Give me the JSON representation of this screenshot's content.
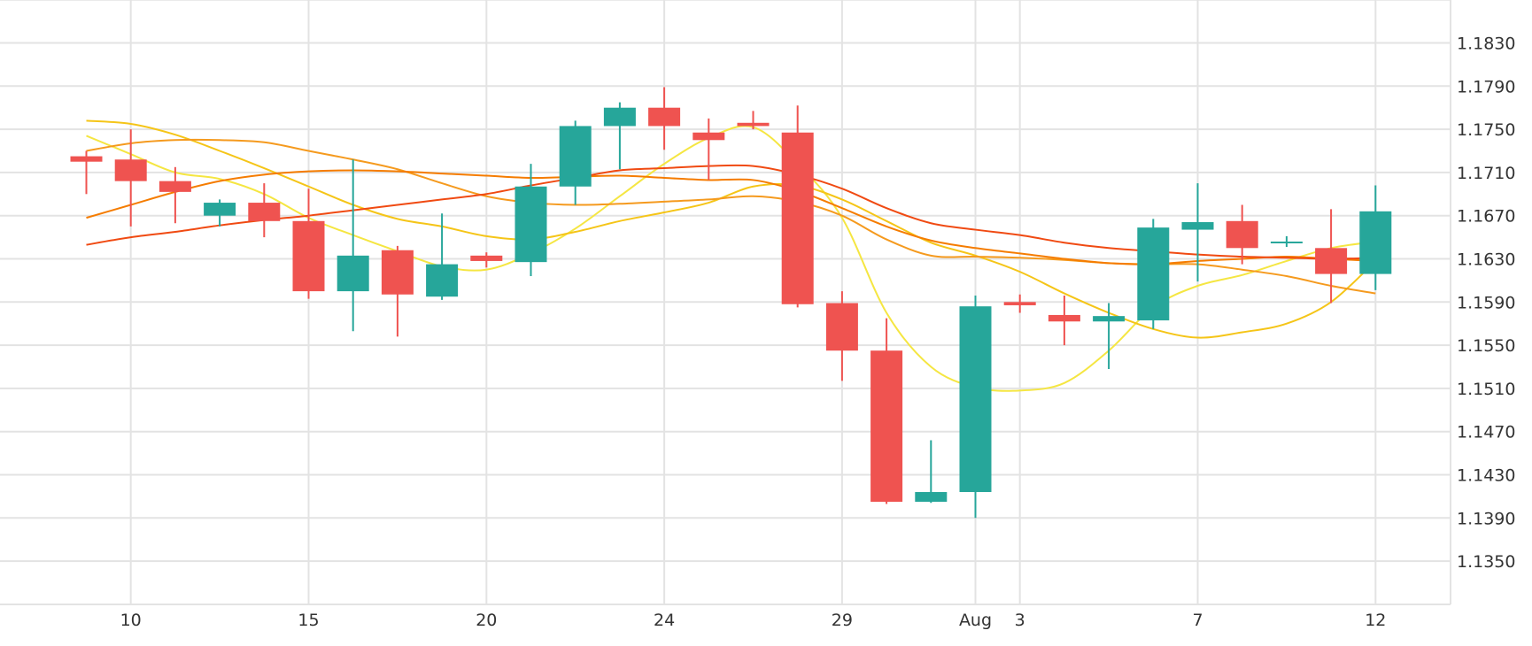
{
  "chart_data": {
    "type": "candlestick",
    "title": "",
    "xlabel": "",
    "ylabel": "",
    "ylim": [
      1.131,
      1.187
    ],
    "y_ticks": [
      "1.1350",
      "1.1390",
      "1.1430",
      "1.1470",
      "1.1510",
      "1.1550",
      "1.1590",
      "1.1630",
      "1.1670",
      "1.1710",
      "1.1750",
      "1.1790",
      "1.1830"
    ],
    "x_ticks": [
      {
        "label": "10",
        "index": 1
      },
      {
        "label": "15",
        "index": 5
      },
      {
        "label": "20",
        "index": 9
      },
      {
        "label": "24",
        "index": 13
      },
      {
        "label": "29",
        "index": 17
      },
      {
        "label": "Aug",
        "index": 20
      },
      {
        "label": "3",
        "index": 21
      },
      {
        "label": "7",
        "index": 25
      },
      {
        "label": "12",
        "index": 29
      }
    ],
    "grid": true,
    "colors": {
      "up": "#26a69a",
      "down": "#ef5350",
      "grid": "#e3e3e3"
    },
    "candles": [
      {
        "o": 1.1725,
        "h": 1.173,
        "l": 1.169,
        "c": 1.172
      },
      {
        "o": 1.1722,
        "h": 1.175,
        "l": 1.166,
        "c": 1.1702
      },
      {
        "o": 1.1702,
        "h": 1.1715,
        "l": 1.1663,
        "c": 1.1692
      },
      {
        "o": 1.167,
        "h": 1.1685,
        "l": 1.166,
        "c": 1.1682
      },
      {
        "o": 1.1682,
        "h": 1.17,
        "l": 1.165,
        "c": 1.1665
      },
      {
        "o": 1.1665,
        "h": 1.1695,
        "l": 1.1593,
        "c": 1.16
      },
      {
        "o": 1.16,
        "h": 1.1722,
        "l": 1.1563,
        "c": 1.1633
      },
      {
        "o": 1.1638,
        "h": 1.1642,
        "l": 1.1558,
        "c": 1.1597
      },
      {
        "o": 1.1595,
        "h": 1.1672,
        "l": 1.1592,
        "c": 1.1625
      },
      {
        "o": 1.1633,
        "h": 1.1636,
        "l": 1.1622,
        "c": 1.1628
      },
      {
        "o": 1.1627,
        "h": 1.1718,
        "l": 1.1614,
        "c": 1.1697
      },
      {
        "o": 1.1697,
        "h": 1.1758,
        "l": 1.168,
        "c": 1.1753
      },
      {
        "o": 1.1753,
        "h": 1.1775,
        "l": 1.1713,
        "c": 1.177
      },
      {
        "o": 1.177,
        "h": 1.1789,
        "l": 1.1731,
        "c": 1.1753
      },
      {
        "o": 1.1747,
        "h": 1.176,
        "l": 1.1703,
        "c": 1.174
      },
      {
        "o": 1.1756,
        "h": 1.1767,
        "l": 1.175,
        "c": 1.1753
      },
      {
        "o": 1.1747,
        "h": 1.1772,
        "l": 1.1585,
        "c": 1.1588
      },
      {
        "o": 1.1589,
        "h": 1.16,
        "l": 1.1517,
        "c": 1.1545
      },
      {
        "o": 1.1545,
        "h": 1.1575,
        "l": 1.1403,
        "c": 1.1405
      },
      {
        "o": 1.1405,
        "h": 1.1462,
        "l": 1.1404,
        "c": 1.1414
      },
      {
        "o": 1.1414,
        "h": 1.1596,
        "l": 1.139,
        "c": 1.1586
      },
      {
        "o": 1.159,
        "h": 1.1597,
        "l": 1.158,
        "c": 1.1587
      },
      {
        "o": 1.1578,
        "h": 1.1596,
        "l": 1.155,
        "c": 1.1572
      },
      {
        "o": 1.1572,
        "h": 1.1589,
        "l": 1.1528,
        "c": 1.1577
      },
      {
        "o": 1.1573,
        "h": 1.1667,
        "l": 1.1565,
        "c": 1.1659
      },
      {
        "o": 1.1657,
        "h": 1.17,
        "l": 1.1609,
        "c": 1.1664
      },
      {
        "o": 1.1665,
        "h": 1.168,
        "l": 1.1625,
        "c": 1.164
      },
      {
        "o": 1.1645,
        "h": 1.1651,
        "l": 1.1641,
        "c": 1.1646
      },
      {
        "o": 1.164,
        "h": 1.1676,
        "l": 1.1589,
        "c": 1.1616
      },
      {
        "o": 1.1616,
        "h": 1.1698,
        "l": 1.1601,
        "c": 1.1674
      }
    ],
    "overlay_lines": [
      {
        "color": "#f5e642",
        "values": [
          [
            0,
            1.1744
          ],
          [
            1,
            1.1727
          ],
          [
            2,
            1.171
          ],
          [
            3,
            1.1704
          ],
          [
            4,
            1.169
          ],
          [
            5,
            1.1668
          ],
          [
            6,
            1.1652
          ],
          [
            7,
            1.1637
          ],
          [
            8,
            1.1623
          ],
          [
            9,
            1.162
          ],
          [
            10,
            1.1635
          ],
          [
            11,
            1.1658
          ],
          [
            12,
            1.1688
          ],
          [
            13,
            1.1718
          ],
          [
            14,
            1.1742
          ],
          [
            15,
            1.1752
          ],
          [
            16,
            1.1718
          ],
          [
            17,
            1.1668
          ],
          [
            18,
            1.158
          ],
          [
            19,
            1.153
          ],
          [
            20,
            1.1511
          ],
          [
            21,
            1.1508
          ],
          [
            22,
            1.1515
          ],
          [
            23,
            1.1545
          ],
          [
            24,
            1.1585
          ],
          [
            25,
            1.1605
          ],
          [
            26,
            1.1615
          ],
          [
            27,
            1.1628
          ],
          [
            28,
            1.164
          ],
          [
            29,
            1.1646
          ]
        ]
      },
      {
        "color": "#f5c518",
        "values": [
          [
            0,
            1.1758
          ],
          [
            1,
            1.1755
          ],
          [
            2,
            1.1745
          ],
          [
            3,
            1.173
          ],
          [
            4,
            1.1714
          ],
          [
            5,
            1.1697
          ],
          [
            6,
            1.168
          ],
          [
            7,
            1.1667
          ],
          [
            8,
            1.166
          ],
          [
            9,
            1.1651
          ],
          [
            10,
            1.1648
          ],
          [
            11,
            1.1655
          ],
          [
            12,
            1.1665
          ],
          [
            13,
            1.1673
          ],
          [
            14,
            1.1682
          ],
          [
            15,
            1.1697
          ],
          [
            16,
            1.1698
          ],
          [
            17,
            1.1685
          ],
          [
            18,
            1.1665
          ],
          [
            19,
            1.1645
          ],
          [
            20,
            1.1633
          ],
          [
            21,
            1.1618
          ],
          [
            22,
            1.1598
          ],
          [
            23,
            1.158
          ],
          [
            24,
            1.1565
          ],
          [
            25,
            1.1557
          ],
          [
            26,
            1.1562
          ],
          [
            27,
            1.157
          ],
          [
            28,
            1.159
          ],
          [
            29,
            1.1628
          ]
        ]
      },
      {
        "color": "#f59a1e",
        "values": [
          [
            0,
            1.173
          ],
          [
            1,
            1.1737
          ],
          [
            2,
            1.174
          ],
          [
            3,
            1.174
          ],
          [
            4,
            1.1738
          ],
          [
            5,
            1.173
          ],
          [
            6,
            1.1722
          ],
          [
            7,
            1.1713
          ],
          [
            8,
            1.17
          ],
          [
            9,
            1.1688
          ],
          [
            10,
            1.1682
          ],
          [
            11,
            1.168
          ],
          [
            12,
            1.1681
          ],
          [
            13,
            1.1683
          ],
          [
            14,
            1.1685
          ],
          [
            15,
            1.1688
          ],
          [
            16,
            1.1683
          ],
          [
            17,
            1.167
          ],
          [
            18,
            1.1648
          ],
          [
            19,
            1.1633
          ],
          [
            20,
            1.1632
          ],
          [
            21,
            1.1631
          ],
          [
            22,
            1.1629
          ],
          [
            23,
            1.1626
          ],
          [
            24,
            1.1625
          ],
          [
            25,
            1.1625
          ],
          [
            26,
            1.162
          ],
          [
            27,
            1.1614
          ],
          [
            28,
            1.1605
          ],
          [
            29,
            1.1598
          ]
        ]
      },
      {
        "color": "#f57c00",
        "values": [
          [
            0,
            1.1668
          ],
          [
            1,
            1.168
          ],
          [
            2,
            1.1692
          ],
          [
            3,
            1.1702
          ],
          [
            4,
            1.1708
          ],
          [
            5,
            1.1711
          ],
          [
            6,
            1.1712
          ],
          [
            7,
            1.1711
          ],
          [
            8,
            1.1709
          ],
          [
            9,
            1.1707
          ],
          [
            10,
            1.1705
          ],
          [
            11,
            1.1706
          ],
          [
            12,
            1.1707
          ],
          [
            13,
            1.1705
          ],
          [
            14,
            1.1703
          ],
          [
            15,
            1.1703
          ],
          [
            16,
            1.1693
          ],
          [
            17,
            1.1677
          ],
          [
            18,
            1.166
          ],
          [
            19,
            1.1647
          ],
          [
            20,
            1.164
          ],
          [
            21,
            1.1635
          ],
          [
            22,
            1.163
          ],
          [
            23,
            1.1626
          ],
          [
            24,
            1.1625
          ],
          [
            25,
            1.1628
          ],
          [
            26,
            1.163
          ],
          [
            27,
            1.1632
          ],
          [
            28,
            1.163
          ],
          [
            29,
            1.1628
          ]
        ]
      },
      {
        "color": "#f04a12",
        "values": [
          [
            0,
            1.1643
          ],
          [
            1,
            1.165
          ],
          [
            2,
            1.1655
          ],
          [
            3,
            1.1661
          ],
          [
            4,
            1.1666
          ],
          [
            5,
            1.167
          ],
          [
            6,
            1.1675
          ],
          [
            7,
            1.168
          ],
          [
            8,
            1.1685
          ],
          [
            9,
            1.169
          ],
          [
            10,
            1.1698
          ],
          [
            11,
            1.1705
          ],
          [
            12,
            1.1712
          ],
          [
            13,
            1.1714
          ],
          [
            14,
            1.1716
          ],
          [
            15,
            1.1716
          ],
          [
            16,
            1.1708
          ],
          [
            17,
            1.1695
          ],
          [
            18,
            1.1677
          ],
          [
            19,
            1.1663
          ],
          [
            20,
            1.1657
          ],
          [
            21,
            1.1652
          ],
          [
            22,
            1.1645
          ],
          [
            23,
            1.164
          ],
          [
            24,
            1.1637
          ],
          [
            25,
            1.1634
          ],
          [
            26,
            1.1632
          ],
          [
            27,
            1.1631
          ],
          [
            28,
            1.163
          ],
          [
            29,
            1.1631
          ]
        ]
      }
    ]
  }
}
